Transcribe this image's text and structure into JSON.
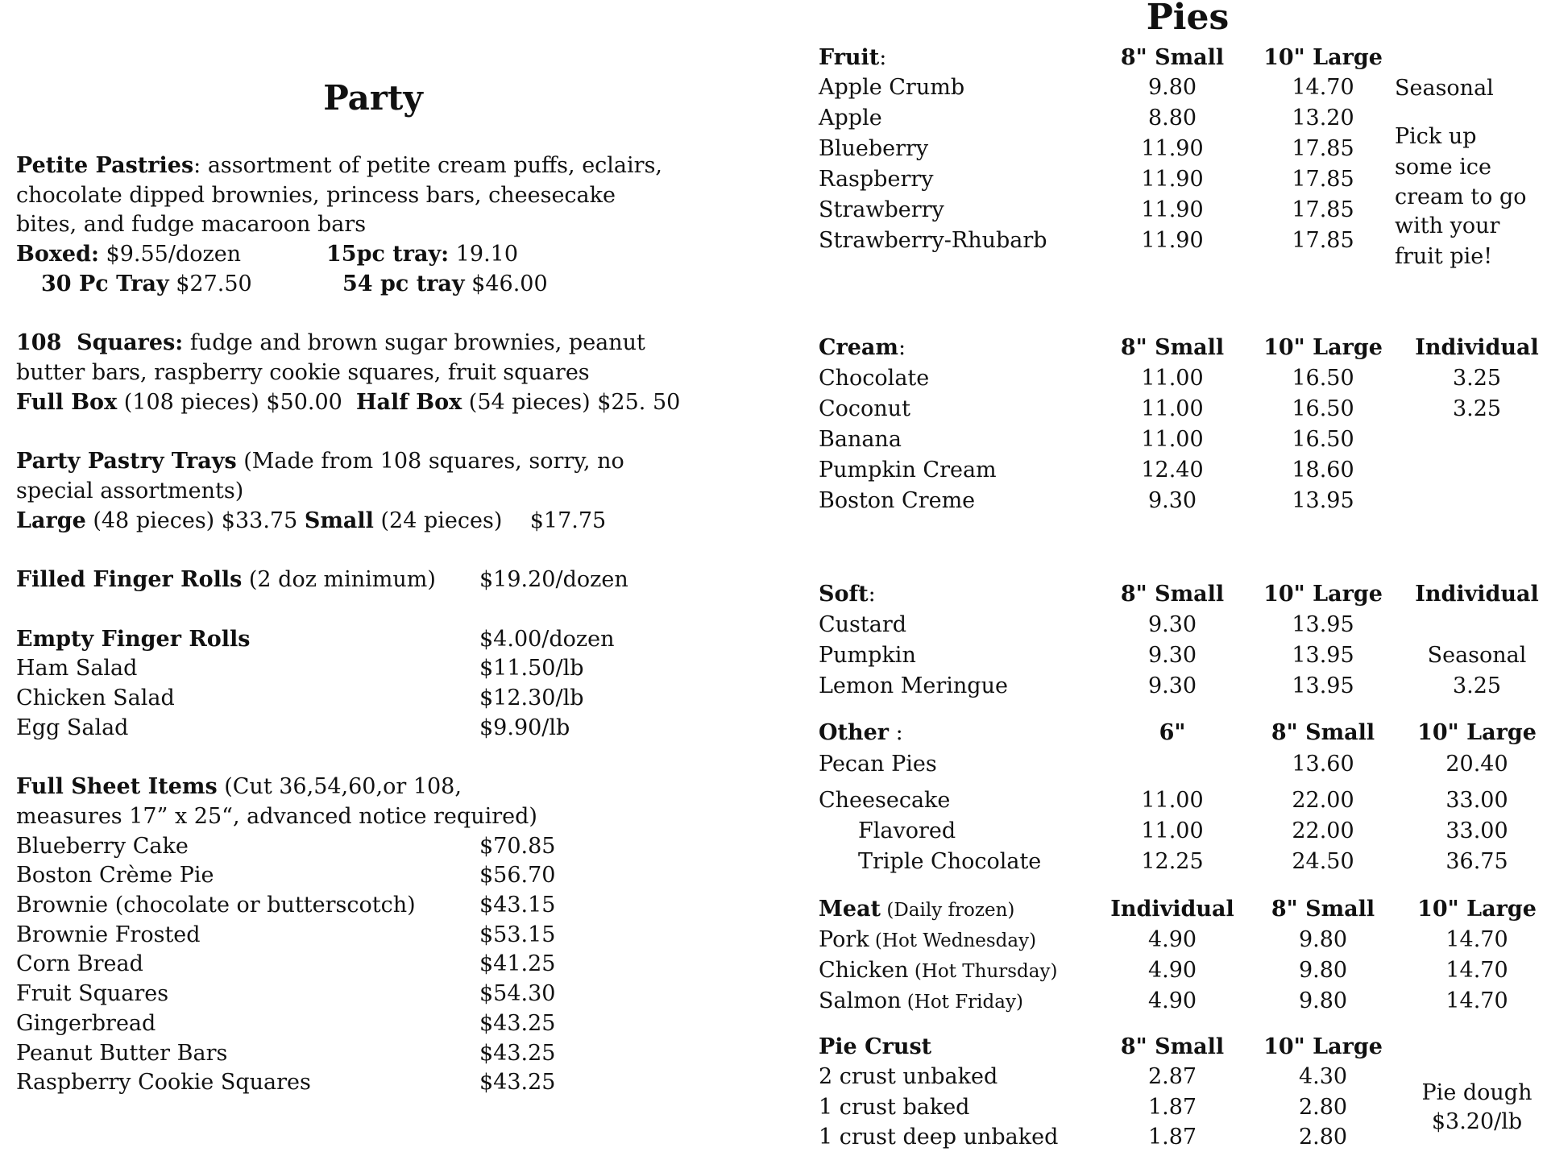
{
  "party": {
    "title": "Party",
    "petite": {
      "label": "Petite Pastries",
      "desc1": ": assortment of petite cream puffs, eclairs,",
      "desc2": "chocolate dipped brownies, princess bars, cheesecake",
      "desc3": "bites, and fudge macaroon bars",
      "boxed_label": "Boxed:",
      "boxed_price": " $9.55/dozen",
      "tray15_label": "15pc tray:",
      "tray15_price": " 19.10",
      "tray30_label": "30 Pc Tray",
      "tray30_price": " $27.50",
      "tray54_label": "54 pc tray",
      "tray54_price": " $46.00"
    },
    "squares": {
      "label": "108  Squares:",
      "desc1": " fudge and brown sugar brownies, peanut",
      "desc2": "butter bars, raspberry cookie squares, fruit squares",
      "full_label": "Full Box",
      "full_desc": " (108 pieces) $50.00  ",
      "half_label": "Half Box",
      "half_desc": " (54 pieces) $25. 50"
    },
    "trays": {
      "label": "Party Pastry Trays",
      "desc1": " (Made from 108 squares, sorry, no",
      "desc2": "special assortments)",
      "large_label": "Large",
      "large_desc": " (48 pieces) $33.75 ",
      "small_label": "Small",
      "small_desc": " (24 pieces)    $17.75"
    },
    "filled": {
      "label": "Filled Finger Rolls",
      "desc": " (2 doz minimum)",
      "price": "$19.20/dozen"
    },
    "empty": {
      "label": "Empty Finger Rolls",
      "price": "$4.00/dozen",
      "items": [
        {
          "name": "Ham Salad",
          "price": "$11.50/lb"
        },
        {
          "name": "Chicken Salad",
          "price": "$12.30/lb"
        },
        {
          "name": "Egg Salad",
          "price": "$9.90/lb"
        }
      ]
    },
    "sheet": {
      "label": "Full Sheet Items",
      "desc1": " (Cut 36,54,60,or 108,",
      "desc2": "measures 17” x 25“, advanced notice required)",
      "items": [
        {
          "name": "Blueberry Cake",
          "price": "$70.85"
        },
        {
          "name": "Boston Crème Pie",
          "price": "$56.70"
        },
        {
          "name": "Brownie (chocolate or butterscotch)",
          "price": "$43.15"
        },
        {
          "name": "Brownie Frosted",
          "price": "$53.15"
        },
        {
          "name": "Corn Bread",
          "price": "$41.25"
        },
        {
          "name": "Fruit Squares",
          "price": "$54.30"
        },
        {
          "name": "Gingerbread",
          "price": "$43.25"
        },
        {
          "name": "Peanut Butter Bars",
          "price": "$43.25"
        },
        {
          "name": "Raspberry Cookie Squares",
          "price": "$43.25"
        }
      ]
    }
  },
  "pies": {
    "title": "Pies",
    "sections": [
      {
        "label": "Fruit",
        "suffix": ":",
        "headers": [
          "8\" Small",
          "10\" Large",
          ""
        ],
        "rows": [
          {
            "name": "Apple Crumb",
            "vals": [
              "9.80",
              "14.70",
              ""
            ]
          },
          {
            "name": "Apple",
            "vals": [
              "8.80",
              "13.20",
              ""
            ]
          },
          {
            "name": "Blueberry",
            "vals": [
              "11.90",
              "17.85",
              ""
            ]
          },
          {
            "name": "Raspberry",
            "vals": [
              "11.90",
              "17.85",
              ""
            ]
          },
          {
            "name": "Strawberry",
            "vals": [
              "11.90",
              "17.85",
              ""
            ]
          },
          {
            "name": "Strawberry-Rhubarb",
            "vals": [
              "11.90",
              "17.85",
              ""
            ]
          }
        ]
      },
      {
        "label": "Cream",
        "suffix": ":",
        "headers": [
          "8\" Small",
          "10\" Large",
          "Individual"
        ],
        "rows": [
          {
            "name": "Chocolate",
            "vals": [
              "11.00",
              "16.50",
              "3.25"
            ]
          },
          {
            "name": "Coconut",
            "vals": [
              "11.00",
              "16.50",
              "3.25"
            ]
          },
          {
            "name": "Banana",
            "vals": [
              "11.00",
              "16.50",
              ""
            ]
          },
          {
            "name": "Pumpkin Cream",
            "vals": [
              "12.40",
              "18.60",
              ""
            ]
          },
          {
            "name": "Boston Creme",
            "vals": [
              "9.30",
              "13.95",
              ""
            ]
          }
        ]
      },
      {
        "label": "Soft",
        "suffix": ":",
        "headers": [
          "8\" Small",
          "10\" Large",
          "Individual"
        ],
        "rows": [
          {
            "name": "Custard",
            "vals": [
              "9.30",
              "13.95",
              ""
            ]
          },
          {
            "name": "Pumpkin",
            "vals": [
              "9.30",
              "13.95",
              "Seasonal"
            ]
          },
          {
            "name": "Lemon Meringue",
            "vals": [
              "9.30",
              "13.95",
              "3.25"
            ]
          }
        ]
      },
      {
        "label": "Other",
        "suffix": " :",
        "headers": [
          "6\"",
          "8\" Small",
          "10\" Large"
        ],
        "rows": [
          {
            "name": "Pecan Pies",
            "vals": [
              "",
              "13.60",
              "20.40"
            ]
          },
          {
            "name": "Cheesecake",
            "vals": [
              "11.00",
              "22.00",
              "33.00"
            ]
          },
          {
            "name": "Flavored",
            "indent": true,
            "vals": [
              "11.00",
              "22.00",
              "33.00"
            ]
          },
          {
            "name": "Triple Chocolate",
            "indent": true,
            "vals": [
              "12.25",
              "24.50",
              "36.75"
            ]
          }
        ]
      },
      {
        "label": "Meat",
        "suffix": "",
        "note": " (Daily frozen)",
        "headers": [
          "Individual",
          "8\" Small",
          "10\" Large"
        ],
        "rows": [
          {
            "name": "Pork",
            "note": " (Hot Wednesday)",
            "vals": [
              "4.90",
              "9.80",
              "14.70"
            ]
          },
          {
            "name": "Chicken",
            "note": " (Hot Thursday)",
            "vals": [
              "4.90",
              "9.80",
              "14.70"
            ]
          },
          {
            "name": "Salmon",
            "note": " (Hot Friday)",
            "vals": [
              "4.90",
              "9.80",
              "14.70"
            ]
          }
        ]
      },
      {
        "label": "Pie Crust",
        "suffix": "",
        "headers": [
          "8\" Small",
          "10\" Large",
          ""
        ],
        "rows": [
          {
            "name": "2 crust unbaked",
            "vals": [
              "2.87",
              "4.30",
              ""
            ]
          },
          {
            "name": "1 crust baked",
            "vals": [
              "1.87",
              "2.80",
              ""
            ]
          },
          {
            "name": "1 crust deep unbaked",
            "vals": [
              "1.87",
              "2.80",
              ""
            ]
          }
        ]
      }
    ],
    "fruit_notes": {
      "seasonal": "Seasonal",
      "promo": [
        "Pick up",
        "some ice",
        "cream to go",
        "with your",
        "fruit pie!"
      ]
    },
    "dough_note": [
      "Pie dough",
      "$3.20/lb"
    ]
  }
}
